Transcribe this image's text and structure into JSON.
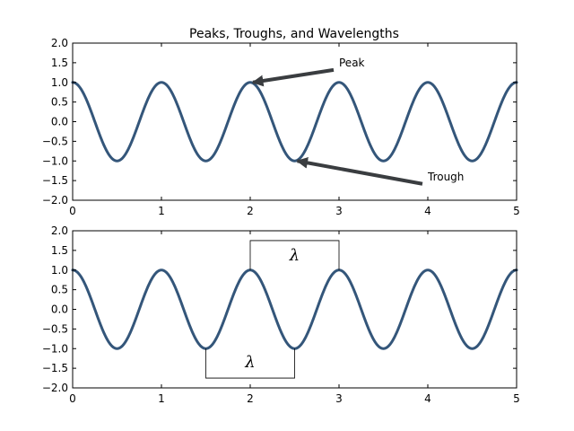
{
  "colors": {
    "series": "#34567a",
    "arrow": "#3a3d40",
    "axis": "#000000"
  },
  "chart_data": [
    {
      "type": "line",
      "title": "Peaks, Troughs, and Wavelengths",
      "xlim": [
        0,
        5
      ],
      "ylim": [
        -2.0,
        2.0
      ],
      "x_ticks": [
        "0",
        "1",
        "2",
        "3",
        "4",
        "5"
      ],
      "y_ticks": [
        "2.0",
        "1.5",
        "1.0",
        "0.5",
        "0.0",
        "−0.5",
        "−1.0",
        "−1.5",
        "−2.0"
      ],
      "grid": false,
      "series": [
        {
          "function": "cos(2*pi*x)",
          "x_range": [
            0,
            5
          ],
          "period": 1,
          "amplitude": 1
        }
      ],
      "annotations": [
        {
          "label": "Peak",
          "points_to": [
            2.0,
            1.0
          ],
          "text_at": [
            3.0,
            1.5
          ]
        },
        {
          "label": "Trough",
          "points_to": [
            2.5,
            -1.0
          ],
          "text_at": [
            4.0,
            -1.4
          ]
        }
      ]
    },
    {
      "type": "line",
      "title": "",
      "xlim": [
        0,
        5
      ],
      "ylim": [
        -2.0,
        2.0
      ],
      "x_ticks": [
        "0",
        "1",
        "2",
        "3",
        "4",
        "5"
      ],
      "y_ticks": [
        "2.0",
        "1.5",
        "1.0",
        "0.5",
        "0.0",
        "−0.5",
        "−1.0",
        "−1.5",
        "−2.0"
      ],
      "grid": false,
      "series": [
        {
          "function": "cos(2*pi*x)",
          "x_range": [
            0,
            5
          ],
          "period": 1,
          "amplitude": 1
        }
      ],
      "wavelength_markers": [
        {
          "label": "λ",
          "x_start": 2.0,
          "x_end": 3.0,
          "y_base": 1.0,
          "y_bar": 1.75
        },
        {
          "label": "λ",
          "x_start": 1.5,
          "x_end": 2.5,
          "y_base": -1.0,
          "y_bar": -1.75
        }
      ]
    }
  ]
}
